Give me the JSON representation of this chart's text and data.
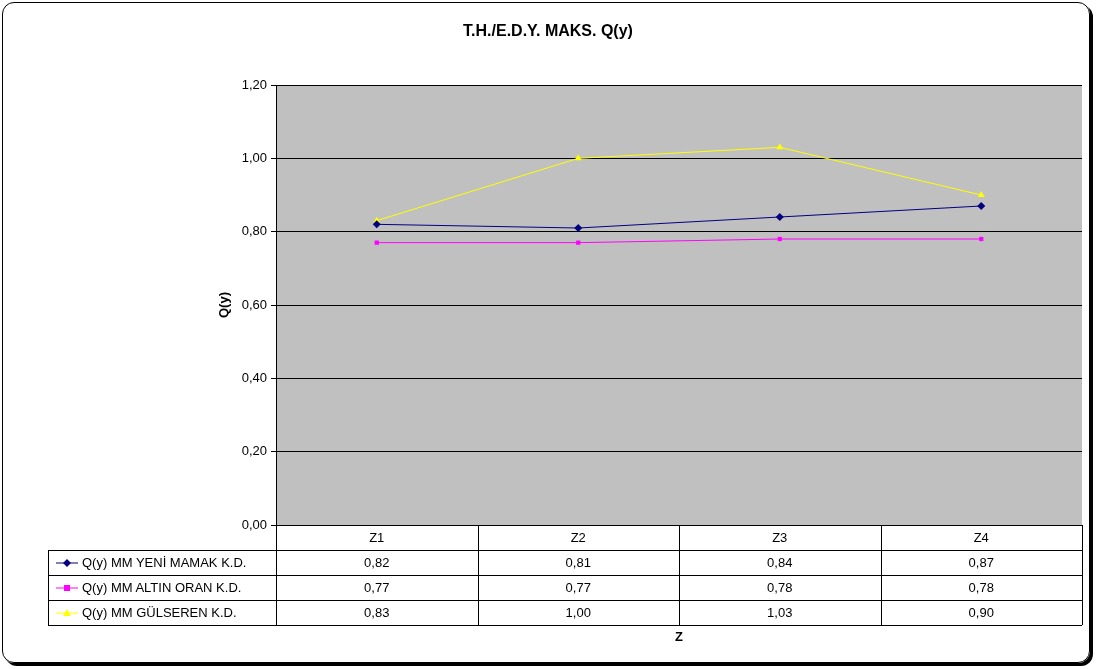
{
  "chart_data": {
    "type": "line",
    "title": "T.H./E.D.Y. MAKS. Q(y)",
    "annotations": [
      "Z"
    ],
    "ylabel": "Q(y)",
    "categories": [
      "Z1",
      "Z2",
      "Z3",
      "Z4"
    ],
    "series": [
      {
        "name": "Q(y) MM YENİ MAMAK K.D.",
        "color": "#000080",
        "marker": "diamond",
        "values": [
          0.82,
          0.81,
          0.84,
          0.87
        ],
        "value_labels": [
          "0,82",
          "0,81",
          "0,84",
          "0,87"
        ]
      },
      {
        "name": "Q(y) MM ALTIN ORAN K.D.",
        "color": "#ff00ff",
        "marker": "square",
        "values": [
          0.77,
          0.77,
          0.78,
          0.78
        ],
        "value_labels": [
          "0,77",
          "0,77",
          "0,78",
          "0,78"
        ]
      },
      {
        "name": "Q(y) MM GÜLSEREN K.D.",
        "color": "#ffff00",
        "marker": "triangle",
        "values": [
          0.83,
          1.0,
          1.03,
          0.9
        ],
        "value_labels": [
          "0,83",
          "1,00",
          "1,03",
          "0,90"
        ]
      }
    ],
    "ylim": [
      0,
      1.2
    ],
    "yticks": [
      {
        "value": 0,
        "label": "0,00"
      },
      {
        "value": 0.2,
        "label": "0,20"
      },
      {
        "value": 0.4,
        "label": "0,40"
      },
      {
        "value": 0.6,
        "label": "0,60"
      },
      {
        "value": 0.8,
        "label": "0,80"
      },
      {
        "value": 1,
        "label": "1,00"
      },
      {
        "value": 1.2,
        "label": "1,20"
      }
    ],
    "grid": "y",
    "legend": "bottom",
    "line_style": "solid"
  }
}
